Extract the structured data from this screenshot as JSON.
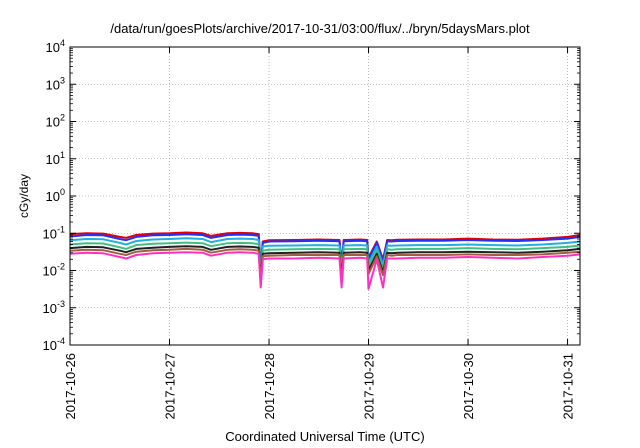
{
  "chart_data": {
    "type": "line",
    "title": "/data/run/goesPlots/archive/2017-10-31/03:00/flux/../bryn/5daysMars.plot",
    "xlabel": "Coordinated Universal Time (UTC)",
    "ylabel": "cGy/day",
    "yscale": "log",
    "ylim": [
      0.0001,
      10000
    ],
    "xlim": [
      "2017-10-26T00:00",
      "2017-10-31T03:00"
    ],
    "y_ticks": [
      {
        "base": "10",
        "exp": "-4",
        "value": 0.0001
      },
      {
        "base": "10",
        "exp": "-3",
        "value": 0.001
      },
      {
        "base": "10",
        "exp": "-2",
        "value": 0.01
      },
      {
        "base": "10",
        "exp": "-1",
        "value": 0.1
      },
      {
        "base": "10",
        "exp": "0",
        "value": 1
      },
      {
        "base": "10",
        "exp": "1",
        "value": 10
      },
      {
        "base": "10",
        "exp": "2",
        "value": 100
      },
      {
        "base": "10",
        "exp": "3",
        "value": 1000
      },
      {
        "base": "10",
        "exp": "4",
        "value": 10000
      }
    ],
    "x_ticks": [
      {
        "label": "2017-10-26",
        "value": "2017-10-26T00:00"
      },
      {
        "label": "2017-10-27",
        "value": "2017-10-27T00:00"
      },
      {
        "label": "2017-10-28",
        "value": "2017-10-28T00:00"
      },
      {
        "label": "2017-10-29",
        "value": "2017-10-29T00:00"
      },
      {
        "label": "2017-10-30",
        "value": "2017-10-30T00:00"
      },
      {
        "label": "2017-10-31",
        "value": "2017-10-31T00:00"
      }
    ],
    "grid": true,
    "legend": "none",
    "x": [
      "2017-10-26T00:00",
      "2017-10-26T04:00",
      "2017-10-26T08:00",
      "2017-10-26T12:00",
      "2017-10-26T13:30",
      "2017-10-26T16:00",
      "2017-10-26T20:00",
      "2017-10-27T00:00",
      "2017-10-27T04:00",
      "2017-10-27T08:00",
      "2017-10-27T10:00",
      "2017-10-27T14:00",
      "2017-10-27T17:00",
      "2017-10-27T20:00",
      "2017-10-27T21:30",
      "2017-10-27T22:00",
      "2017-10-27T22:30",
      "2017-10-28T00:00",
      "2017-10-28T06:00",
      "2017-10-28T12:00",
      "2017-10-28T17:00",
      "2017-10-28T17:30",
      "2017-10-28T18:00",
      "2017-10-28T22:00",
      "2017-10-28T23:40",
      "2017-10-29T00:00",
      "2017-10-29T02:00",
      "2017-10-29T03:30",
      "2017-10-29T04:30",
      "2017-10-29T05:30",
      "2017-10-29T07:00",
      "2017-10-29T12:00",
      "2017-10-29T18:00",
      "2017-10-30T00:00",
      "2017-10-30T06:00",
      "2017-10-30T12:00",
      "2017-10-30T18:00",
      "2017-10-31T00:00",
      "2017-10-31T03:00"
    ],
    "series": [
      {
        "color": "#e00000",
        "values": [
          0.095,
          0.1,
          0.098,
          0.08,
          0.075,
          0.09,
          0.098,
          0.1,
          0.105,
          0.1,
          0.085,
          0.1,
          0.102,
          0.1,
          0.095,
          0.014,
          0.06,
          0.065,
          0.066,
          0.068,
          0.066,
          0.015,
          0.066,
          0.068,
          0.066,
          0.022,
          0.06,
          0.02,
          0.066,
          0.065,
          0.067,
          0.068,
          0.068,
          0.072,
          0.068,
          0.067,
          0.072,
          0.08,
          0.09
        ]
      },
      {
        "color": "#2030ff",
        "values": [
          0.082,
          0.09,
          0.088,
          0.07,
          0.065,
          0.08,
          0.088,
          0.09,
          0.094,
          0.09,
          0.075,
          0.09,
          0.092,
          0.09,
          0.085,
          0.012,
          0.055,
          0.06,
          0.061,
          0.063,
          0.061,
          0.013,
          0.061,
          0.063,
          0.061,
          0.02,
          0.055,
          0.018,
          0.061,
          0.06,
          0.062,
          0.063,
          0.063,
          0.066,
          0.063,
          0.062,
          0.066,
          0.072,
          0.08
        ]
      },
      {
        "color": "#20b0e0",
        "values": [
          0.065,
          0.07,
          0.069,
          0.055,
          0.05,
          0.062,
          0.068,
          0.07,
          0.073,
          0.07,
          0.058,
          0.07,
          0.072,
          0.07,
          0.066,
          0.01,
          0.044,
          0.046,
          0.047,
          0.048,
          0.047,
          0.01,
          0.047,
          0.048,
          0.047,
          0.016,
          0.044,
          0.014,
          0.047,
          0.046,
          0.047,
          0.048,
          0.048,
          0.05,
          0.048,
          0.047,
          0.05,
          0.055,
          0.06
        ]
      },
      {
        "color": "#40c080",
        "values": [
          0.05,
          0.054,
          0.053,
          0.042,
          0.038,
          0.048,
          0.052,
          0.054,
          0.056,
          0.054,
          0.045,
          0.054,
          0.055,
          0.054,
          0.051,
          0.008,
          0.034,
          0.036,
          0.037,
          0.038,
          0.037,
          0.008,
          0.037,
          0.038,
          0.037,
          0.012,
          0.034,
          0.011,
          0.037,
          0.036,
          0.037,
          0.038,
          0.038,
          0.04,
          0.038,
          0.037,
          0.04,
          0.043,
          0.047
        ]
      },
      {
        "color": "#202020",
        "values": [
          0.04,
          0.043,
          0.042,
          0.034,
          0.031,
          0.038,
          0.041,
          0.043,
          0.045,
          0.043,
          0.036,
          0.043,
          0.044,
          0.043,
          0.041,
          0.006,
          0.028,
          0.029,
          0.03,
          0.031,
          0.03,
          0.006,
          0.03,
          0.031,
          0.03,
          0.01,
          0.028,
          0.009,
          0.03,
          0.029,
          0.03,
          0.031,
          0.031,
          0.032,
          0.031,
          0.03,
          0.032,
          0.035,
          0.038
        ]
      },
      {
        "color": "#a06040",
        "values": [
          0.034,
          0.036,
          0.035,
          0.028,
          0.026,
          0.032,
          0.035,
          0.036,
          0.038,
          0.036,
          0.03,
          0.036,
          0.037,
          0.036,
          0.034,
          0.005,
          0.024,
          0.025,
          0.026,
          0.026,
          0.026,
          0.005,
          0.026,
          0.026,
          0.026,
          0.008,
          0.024,
          0.0075,
          0.026,
          0.025,
          0.026,
          0.026,
          0.026,
          0.027,
          0.026,
          0.026,
          0.027,
          0.03,
          0.032
        ]
      },
      {
        "color": "#ff30c0",
        "values": [
          0.028,
          0.03,
          0.029,
          0.023,
          0.021,
          0.026,
          0.029,
          0.03,
          0.031,
          0.03,
          0.025,
          0.03,
          0.031,
          0.03,
          0.028,
          0.0035,
          0.02,
          0.021,
          0.021,
          0.022,
          0.021,
          0.0035,
          0.021,
          0.022,
          0.021,
          0.0032,
          0.02,
          0.0035,
          0.021,
          0.021,
          0.021,
          0.022,
          0.022,
          0.023,
          0.022,
          0.021,
          0.023,
          0.025,
          0.027
        ]
      }
    ]
  }
}
